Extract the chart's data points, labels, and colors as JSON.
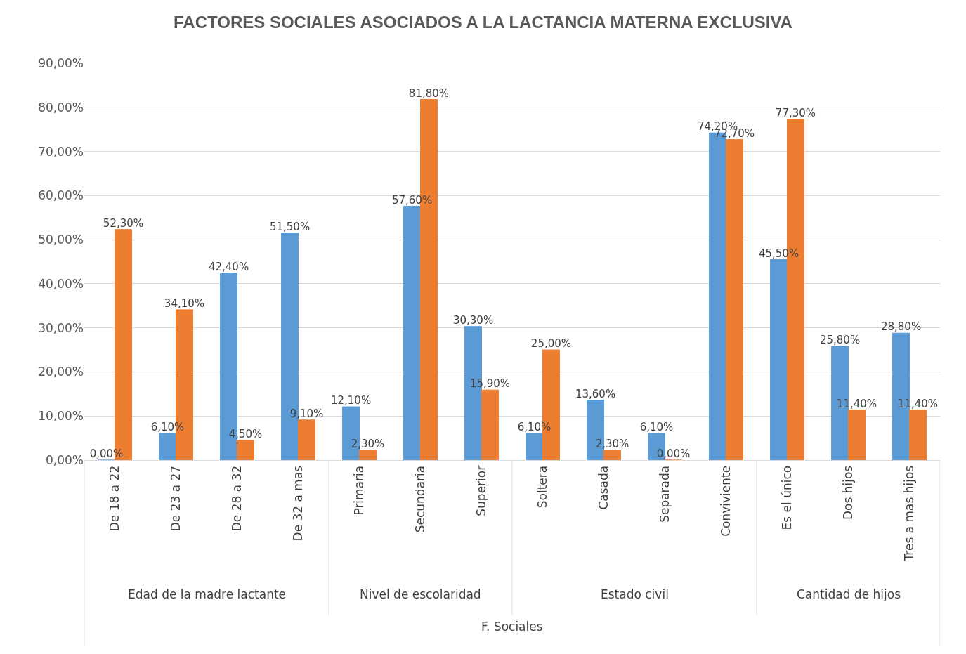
{
  "chart_data": {
    "type": "bar",
    "title": "FACTORES SOCIALES ASOCIADOS A LA LACTANCIA MATERNA EXCLUSIVA",
    "xlabel": "F. Sociales",
    "categories": [
      "De 18 a 22",
      "De 23 a 27",
      "De 28 a 32",
      "De 32 a mas",
      "Primaria",
      "Secundaria",
      "Superior",
      "Soltera",
      "Casada",
      "Separada",
      "Conviviente",
      "Es el único",
      "Dos hijos",
      "Tres a mas hijos"
    ],
    "series": [
      {
        "color": "#5b9bd5",
        "values": [
          0,
          6.1,
          42.4,
          51.5,
          12.1,
          57.6,
          30.3,
          6.1,
          13.6,
          6.1,
          74.2,
          45.5,
          25.8,
          28.8
        ],
        "value_labels": [
          "0,00%",
          "6,10%",
          "42,40%",
          "51,50%",
          "12,10%",
          "57,60%",
          "30,30%",
          "6,10%",
          "13,60%",
          "6,10%",
          "74,20%",
          "45,50%",
          "25,80%",
          "28,80%"
        ]
      },
      {
        "color": "#ed7d31",
        "values": [
          52.3,
          34.1,
          4.5,
          9.1,
          2.3,
          81.8,
          15.9,
          25.0,
          2.3,
          0,
          72.7,
          77.3,
          11.4,
          11.4
        ],
        "value_labels": [
          "52,30%",
          "34,10%",
          "4,50%",
          "9,10%",
          "2,30%",
          "81,80%",
          "15,90%",
          "25,00%",
          "2,30%",
          "0,00%",
          "72,70%",
          "77,30%",
          "11,40%",
          "11,40%"
        ]
      }
    ],
    "annotations": [
      "Edad de la madre lactante",
      "Nivel de escolaridad",
      "Estado civil",
      "Cantidad de hijos"
    ],
    "ylim": [
      0,
      90
    ],
    "yticks": [
      {
        "value": 0,
        "label": "0,00%"
      },
      {
        "value": 10,
        "label": "10,00%"
      },
      {
        "value": 20,
        "label": "20,00%"
      },
      {
        "value": 30,
        "label": "30,00%"
      },
      {
        "value": 40,
        "label": "40,00%"
      },
      {
        "value": 50,
        "label": "50,00%"
      },
      {
        "value": 60,
        "label": "60,00%"
      },
      {
        "value": 70,
        "label": "70,00%"
      },
      {
        "value": 80,
        "label": "80,00%"
      },
      {
        "value": 90,
        "label": "90,00%"
      }
    ],
    "grid": "y"
  }
}
